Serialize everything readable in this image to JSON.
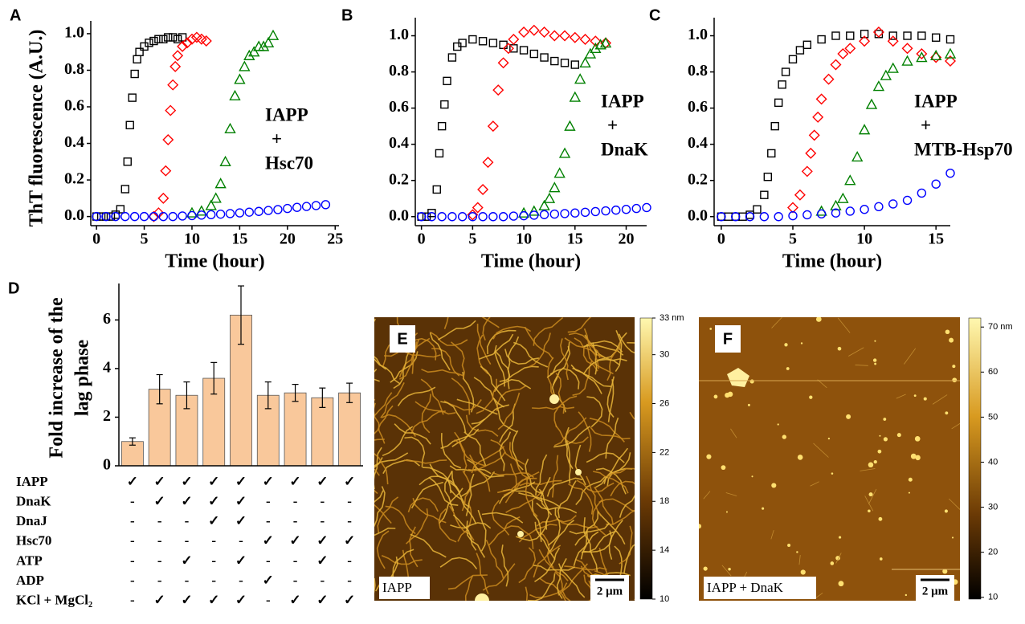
{
  "chart_data": [
    {
      "type": "scatter",
      "panel": "A",
      "xlabel": "Time (hour)",
      "ylabel": "ThT fluorescence (A.U.)",
      "annotation": [
        "IAPP",
        "+",
        "Hsc70"
      ],
      "xlim": [
        -0.6,
        25.4
      ],
      "xticks": [
        0,
        5,
        10,
        15,
        20,
        25
      ],
      "ylim": [
        -0.05,
        1.07
      ],
      "yticks": [
        {
          "value": 0,
          "label": "0.0"
        },
        0.2,
        0.4,
        0.6,
        0.8,
        {
          "value": 1,
          "label": "1.0"
        }
      ],
      "series": [
        {
          "marker": "square",
          "color": "#000000",
          "x": [
            0,
            0.5,
            1,
            1.5,
            2,
            2.5,
            3,
            3.25,
            3.5,
            3.75,
            4,
            4.25,
            4.5,
            5,
            5.5,
            6,
            6.5,
            7,
            7.5,
            8,
            8.5,
            9
          ],
          "values": [
            0,
            0,
            0,
            0,
            0.01,
            0.04,
            0.15,
            0.3,
            0.5,
            0.65,
            0.78,
            0.86,
            0.9,
            0.93,
            0.95,
            0.96,
            0.97,
            0.97,
            0.98,
            0.98,
            0.97,
            0.98
          ]
        },
        {
          "marker": "diamond",
          "color": "#ff0000",
          "x": [
            6,
            6.5,
            7,
            7.25,
            7.5,
            7.75,
            8,
            8.25,
            8.5,
            9,
            9.5,
            10,
            10.5,
            11,
            11.5
          ],
          "values": [
            0,
            0.02,
            0.1,
            0.25,
            0.42,
            0.58,
            0.72,
            0.82,
            0.88,
            0.93,
            0.95,
            0.97,
            0.98,
            0.97,
            0.96
          ]
        },
        {
          "marker": "triangle",
          "color": "#008000",
          "x": [
            10,
            11,
            12,
            12.5,
            13,
            13.5,
            14,
            14.5,
            15,
            15.5,
            16,
            16.5,
            17,
            17.5,
            18,
            18.5
          ],
          "values": [
            0.02,
            0.03,
            0.06,
            0.1,
            0.18,
            0.3,
            0.48,
            0.66,
            0.75,
            0.82,
            0.88,
            0.9,
            0.93,
            0.93,
            0.95,
            0.99
          ]
        },
        {
          "marker": "circle",
          "color": "#0000ff",
          "x": [
            0,
            1,
            2,
            3,
            4,
            5,
            6,
            7,
            8,
            9,
            10,
            11,
            12,
            13,
            14,
            15,
            16,
            17,
            18,
            19,
            20,
            21,
            22,
            23,
            24
          ],
          "values": [
            0,
            0,
            0,
            0,
            0,
            0,
            0,
            0,
            0,
            0.003,
            0.005,
            0.008,
            0.01,
            0.013,
            0.016,
            0.02,
            0.024,
            0.028,
            0.033,
            0.038,
            0.044,
            0.05,
            0.055,
            0.06,
            0.065
          ]
        }
      ]
    },
    {
      "type": "scatter",
      "panel": "B",
      "xlabel": "Time (hour)",
      "annotation": [
        "IAPP",
        "+",
        "DnaK"
      ],
      "xlim": [
        -0.6,
        22
      ],
      "xticks": [
        0,
        5,
        10,
        15,
        20
      ],
      "ylim": [
        -0.05,
        1.1
      ],
      "yticks": [
        {
          "value": 0,
          "label": "0.0"
        },
        0.2,
        0.4,
        0.6,
        0.8,
        {
          "value": 1,
          "label": "1.0"
        }
      ],
      "series": [
        {
          "marker": "square",
          "color": "#000000",
          "x": [
            0,
            0.5,
            1,
            1.5,
            1.75,
            2,
            2.25,
            2.5,
            3,
            3.5,
            4,
            5,
            6,
            7,
            8,
            9,
            10,
            11,
            12,
            13,
            14,
            15
          ],
          "values": [
            0,
            0,
            0.02,
            0.15,
            0.35,
            0.5,
            0.62,
            0.75,
            0.88,
            0.94,
            0.96,
            0.98,
            0.97,
            0.96,
            0.95,
            0.93,
            0.92,
            0.9,
            0.88,
            0.86,
            0.85,
            0.84
          ]
        },
        {
          "marker": "diamond",
          "color": "#ff0000",
          "x": [
            5,
            5.5,
            6,
            6.5,
            7,
            7.5,
            8,
            8.5,
            9,
            10,
            11,
            12,
            13,
            14,
            15,
            16,
            17,
            18
          ],
          "values": [
            0.01,
            0.05,
            0.15,
            0.3,
            0.5,
            0.7,
            0.85,
            0.93,
            0.98,
            1.02,
            1.03,
            1.02,
            1,
            1,
            0.99,
            0.98,
            0.97,
            0.96
          ]
        },
        {
          "marker": "triangle",
          "color": "#008000",
          "x": [
            10,
            11,
            12,
            12.5,
            13,
            13.5,
            14,
            14.5,
            15,
            15.5,
            16,
            16.5,
            17,
            17.5,
            18
          ],
          "values": [
            0.02,
            0.03,
            0.06,
            0.1,
            0.16,
            0.24,
            0.35,
            0.5,
            0.66,
            0.76,
            0.85,
            0.9,
            0.93,
            0.95,
            0.96
          ]
        },
        {
          "marker": "circle",
          "color": "#0000ff",
          "x": [
            0,
            1,
            2,
            3,
            4,
            5,
            6,
            7,
            8,
            9,
            10,
            11,
            12,
            13,
            14,
            15,
            16,
            17,
            18,
            19,
            20,
            21,
            22
          ],
          "values": [
            0,
            0,
            0,
            0,
            0,
            0,
            0,
            0,
            0,
            0.003,
            0.005,
            0.008,
            0.011,
            0.014,
            0.017,
            0.02,
            0.024,
            0.028,
            0.032,
            0.036,
            0.04,
            0.045,
            0.05
          ]
        }
      ]
    },
    {
      "type": "scatter",
      "panel": "C",
      "xlabel": "Time (hour)",
      "annotation": [
        "IAPP",
        "+",
        "MTB-Hsp70"
      ],
      "xlim": [
        -0.5,
        16
      ],
      "xticks": [
        0,
        5,
        10,
        15
      ],
      "ylim": [
        -0.05,
        1.1
      ],
      "yticks": [
        {
          "value": 0,
          "label": "0.0"
        },
        0.2,
        0.4,
        0.6,
        0.8,
        {
          "value": 1,
          "label": "1.0"
        }
      ],
      "series": [
        {
          "marker": "square",
          "color": "#000000",
          "x": [
            0,
            0.5,
            1,
            1.5,
            2,
            2.5,
            3,
            3.25,
            3.5,
            3.75,
            4,
            4.25,
            4.5,
            5,
            5.5,
            6,
            7,
            8,
            9,
            10,
            11,
            12,
            13,
            14,
            15,
            16
          ],
          "values": [
            0,
            0,
            0,
            0,
            0.01,
            0.04,
            0.12,
            0.22,
            0.35,
            0.5,
            0.63,
            0.73,
            0.8,
            0.87,
            0.92,
            0.95,
            0.98,
            1,
            1,
            1.01,
            1.01,
            1,
            1,
            1,
            0.99,
            0.98
          ]
        },
        {
          "marker": "diamond",
          "color": "#ff0000",
          "x": [
            5,
            5.5,
            6,
            6.25,
            6.5,
            6.75,
            7,
            7.5,
            8,
            8.5,
            9,
            10,
            11,
            12,
            13,
            14,
            15,
            16
          ],
          "values": [
            0.05,
            0.12,
            0.25,
            0.35,
            0.45,
            0.55,
            0.65,
            0.76,
            0.84,
            0.9,
            0.93,
            0.97,
            1.02,
            0.97,
            0.93,
            0.9,
            0.88,
            0.86
          ]
        },
        {
          "marker": "triangle",
          "color": "#008000",
          "x": [
            7,
            8,
            8.5,
            9,
            9.5,
            10,
            10.5,
            11,
            11.5,
            12,
            13,
            14,
            15,
            16
          ],
          "values": [
            0.03,
            0.06,
            0.1,
            0.2,
            0.33,
            0.48,
            0.62,
            0.72,
            0.78,
            0.82,
            0.86,
            0.88,
            0.89,
            0.9
          ]
        },
        {
          "marker": "circle",
          "color": "#0000ff",
          "x": [
            0,
            1,
            2,
            3,
            4,
            5,
            6,
            7,
            8,
            9,
            10,
            11,
            12,
            13,
            14,
            15,
            16
          ],
          "values": [
            0,
            0,
            0,
            0,
            0,
            0.005,
            0.01,
            0.015,
            0.02,
            0.03,
            0.04,
            0.055,
            0.07,
            0.09,
            0.13,
            0.18,
            0.24
          ]
        }
      ]
    },
    {
      "type": "bar",
      "panel": "D",
      "ylabel": [
        "Fold increase of the",
        "lag phase"
      ],
      "categories": [
        null,
        null,
        null,
        null,
        null,
        null,
        null,
        null,
        null
      ],
      "values": [
        1,
        3.15,
        2.9,
        3.6,
        6.2,
        2.9,
        3.0,
        2.8,
        3.0
      ],
      "errors": [
        0.15,
        0.6,
        0.55,
        0.65,
        1.2,
        0.55,
        0.35,
        0.4,
        0.4
      ],
      "color": "#f9c89b",
      "ylim": [
        0,
        7.5
      ],
      "yticks": [
        0,
        2,
        4,
        6
      ]
    }
  ],
  "table": {
    "rows": [
      {
        "label": "IAPP",
        "cells": [
          "✓",
          "✓",
          "✓",
          "✓",
          "✓",
          "✓",
          "✓",
          "✓",
          "✓"
        ]
      },
      {
        "label": "DnaK",
        "cells": [
          "-",
          "✓",
          "✓",
          "✓",
          "✓",
          "-",
          "-",
          "-",
          "-"
        ]
      },
      {
        "label": "DnaJ",
        "cells": [
          "-",
          "-",
          "-",
          "✓",
          "✓",
          "-",
          "-",
          "-",
          "-"
        ]
      },
      {
        "label": "Hsc70",
        "cells": [
          "-",
          "-",
          "-",
          "-",
          "-",
          "✓",
          "✓",
          "✓",
          "✓"
        ]
      },
      {
        "label": "ATP",
        "cells": [
          "-",
          "-",
          "✓",
          "-",
          "✓",
          "-",
          "-",
          "✓",
          "-"
        ]
      },
      {
        "label": "ADP",
        "cells": [
          "-",
          "-",
          "-",
          "-",
          "-",
          "✓",
          "-",
          "-",
          "-"
        ]
      },
      {
        "label": "KCl + MgCl₂",
        "cells": [
          "-",
          "✓",
          "✓",
          "✓",
          "✓",
          "-",
          "✓",
          "✓",
          "✓"
        ]
      }
    ]
  },
  "images": [
    {
      "panel": "E",
      "label": "IAPP",
      "scale_bar": "2 μm",
      "colorbar": {
        "lim": [
          10,
          33
        ],
        "ticks": [
          10,
          14,
          18,
          22,
          26,
          30,
          {
            "value": 33,
            "label": "33 nm"
          }
        ]
      }
    },
    {
      "panel": "F",
      "label": "IAPP + DnaK",
      "scale_bar": "2 μm",
      "colorbar": {
        "lim": [
          9.6,
          72
        ],
        "ticks": [
          10,
          20,
          30,
          40,
          50,
          60,
          {
            "value": 70,
            "label": "70 nm"
          }
        ]
      }
    }
  ]
}
